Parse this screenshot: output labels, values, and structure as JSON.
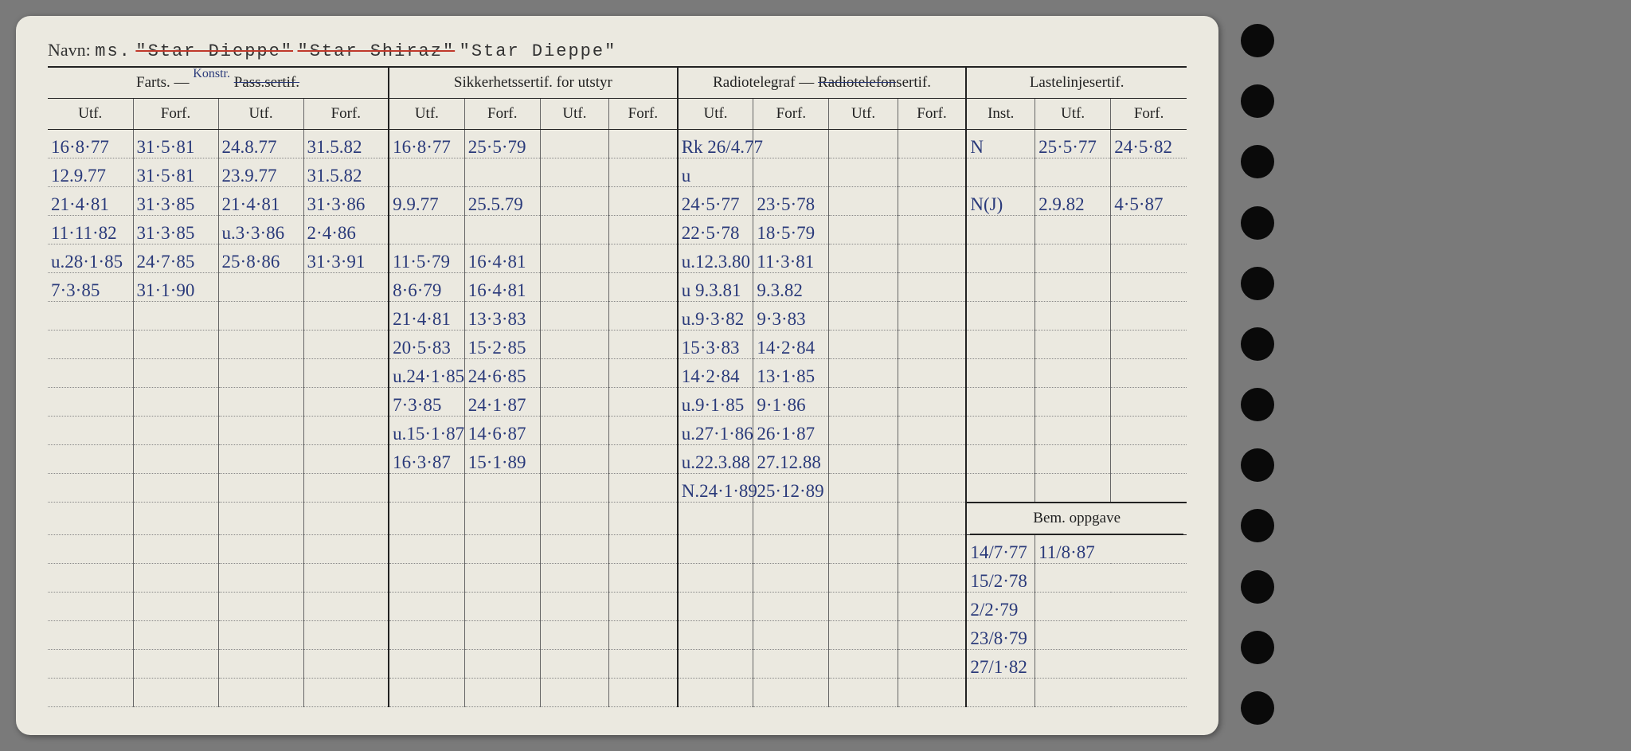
{
  "navn_label": "Navn:",
  "navn_prefix": "ms.",
  "navn_struck1": "\"Star Dieppe\"",
  "navn_struck2": "\"Star Shiraz\"",
  "navn_final": "\"Star Dieppe\"",
  "groups": {
    "farts": "Farts. —",
    "farts_pass": "Pass.sertif.",
    "farts_note": "Konstr.",
    "sikk": "Sikkerhetssertif. for utstyr",
    "radio": "Radiotelegraf — Radiotelefonsertif.",
    "laste": "Lastelinjesertif.",
    "bem": "Bem. oppgave"
  },
  "sub": {
    "utf": "Utf.",
    "forf": "Forf.",
    "inst": "Inst."
  },
  "farts": {
    "a": [
      [
        "16·8·77",
        "31·5·81",
        "24.8.77",
        "31.5.82"
      ],
      [
        "12.9.77",
        "31·5·81",
        "23.9.77",
        "31.5.82"
      ],
      [
        "21·4·81",
        "31·3·85",
        "21·4·81",
        "31·3·86"
      ],
      [
        "11·11·82",
        "31·3·85",
        "u.3·3·86",
        "2·4·86"
      ],
      [
        "u.28·1·85",
        "24·7·85",
        "25·8·86",
        "31·3·91"
      ],
      [
        "7·3·85",
        "31·1·90",
        "",
        ""
      ]
    ]
  },
  "sikk": [
    [
      "16·8·77",
      "25·5·79",
      "",
      ""
    ],
    [
      "",
      "",
      "",
      ""
    ],
    [
      "9.9.77",
      "25.5.79",
      "",
      ""
    ],
    [
      "",
      "",
      "",
      ""
    ],
    [
      "11·5·79",
      "16·4·81",
      "",
      ""
    ],
    [
      "8·6·79",
      "16·4·81",
      "",
      ""
    ],
    [
      "21·4·81",
      "13·3·83",
      "",
      ""
    ],
    [
      "20·5·83",
      "15·2·85",
      "",
      ""
    ],
    [
      "u.24·1·85",
      "24·6·85",
      "",
      ""
    ],
    [
      "7·3·85",
      "24·1·87",
      "",
      ""
    ],
    [
      "u.15·1·87",
      "14·6·87",
      "",
      ""
    ],
    [
      "16·3·87",
      "15·1·89",
      "",
      ""
    ]
  ],
  "radio": [
    [
      "Rk 26/4.77",
      "",
      "",
      ""
    ],
    [
      "u",
      "",
      "",
      ""
    ],
    [
      "24·5·77",
      "23·5·78",
      "",
      ""
    ],
    [
      "22·5·78",
      "18·5·79",
      "",
      ""
    ],
    [
      "u.12.3.80",
      "11·3·81",
      "",
      ""
    ],
    [
      "u 9.3.81",
      "9.3.82",
      "",
      ""
    ],
    [
      "u.9·3·82",
      "9·3·83",
      "",
      ""
    ],
    [
      "15·3·83",
      "14·2·84",
      "",
      ""
    ],
    [
      "14·2·84",
      "13·1·85",
      "",
      ""
    ],
    [
      "u.9·1·85",
      "9·1·86",
      "",
      ""
    ],
    [
      "u.27·1·86",
      "26·1·87",
      "",
      ""
    ],
    [
      "u.22.3.88",
      "27.12.88",
      "",
      ""
    ],
    [
      "N.24·1·89",
      "25·12·89",
      "",
      ""
    ]
  ],
  "laste": [
    [
      "N",
      "25·5·77",
      "24·5·82"
    ],
    [
      "",
      "",
      ""
    ],
    [
      "N(J)",
      "2.9.82",
      "4·5·87"
    ]
  ],
  "bem": [
    [
      "14/7·77",
      "11/8·87"
    ],
    [
      "15/2·78",
      ""
    ],
    [
      "2/2·79",
      ""
    ],
    [
      "23/8·79",
      ""
    ],
    [
      "27/1·82",
      ""
    ]
  ],
  "colors": {
    "paper": "#ebe9e0",
    "ink_print": "#222222",
    "ink_hand": "#2a3a7a",
    "red_strike": "#c0392b",
    "bg": "#7a7a7a"
  }
}
